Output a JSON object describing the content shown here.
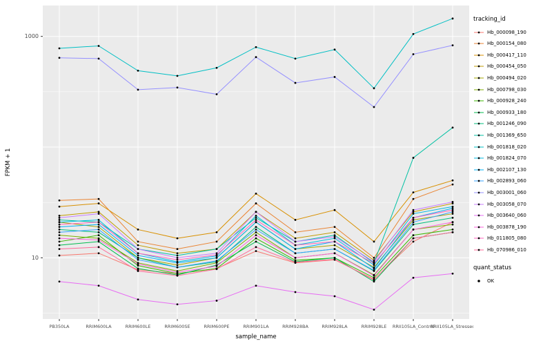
{
  "chart_data": {
    "type": "line",
    "title": "",
    "xlabel": "sample_name",
    "ylabel": "FPKM + 1",
    "y_scale": "log10",
    "y_tick_labels": [
      10,
      1000
    ],
    "y_grid_major": [
      10,
      100,
      1000
    ],
    "y_grid_minor": [
      3.162,
      31.62,
      316.2
    ],
    "ylim": [
      2.8,
      1900
    ],
    "panel_bg": "#EBEBEB",
    "grid_color": "#FFFFFF",
    "point_color": "#000000",
    "categories": [
      "PB350LA",
      "RRIM600LA",
      "RRIM600LE",
      "RRIM600SE",
      "RRIM600PE",
      "RRIM901LA",
      "RRIM928BA",
      "RRIM928LA",
      "RRIM928LE",
      "RRII105LA_Control",
      "RRII105LA_Stressed"
    ],
    "legend": {
      "title": "tracking_id",
      "position": "right"
    },
    "quant_status": {
      "title": "quant_status",
      "items": [
        {
          "label": "OK"
        }
      ]
    },
    "series": [
      {
        "name": "Hb_000098_190",
        "color": "#F8766D",
        "values": [
          10.5,
          11,
          7.8,
          7.2,
          8,
          11.5,
          9,
          9.6,
          6.4,
          14,
          21
        ]
      },
      {
        "name": "Hb_000154_080",
        "color": "#EA8331",
        "values": [
          33,
          34,
          14,
          12,
          14,
          31,
          17,
          19,
          10,
          34,
          46
        ]
      },
      {
        "name": "Hb_000417_110",
        "color": "#D89000",
        "values": [
          29,
          31,
          18,
          15,
          17,
          38,
          22,
          27,
          14,
          39,
          50
        ]
      },
      {
        "name": "Hb_000454_050",
        "color": "#C09B00",
        "values": [
          24,
          26,
          13,
          11,
          12,
          26,
          15,
          17,
          9.5,
          26,
          31
        ]
      },
      {
        "name": "Hb_000494_020",
        "color": "#A3A500",
        "values": [
          21,
          19,
          10,
          8.6,
          10,
          21,
          12,
          13,
          8.2,
          22,
          25
        ]
      },
      {
        "name": "Hb_000798_030",
        "color": "#7CAE00",
        "values": [
          16,
          15,
          9,
          7.6,
          9,
          17,
          10,
          11,
          7,
          18,
          20
        ]
      },
      {
        "name": "Hb_000928_240",
        "color": "#39B600",
        "values": [
          14,
          16,
          8.5,
          7.2,
          8,
          15,
          9.5,
          10,
          6.6,
          16,
          18
        ]
      },
      {
        "name": "Hb_000933_180",
        "color": "#00BB4E",
        "values": [
          13,
          14,
          8,
          7,
          8.6,
          14,
          9.2,
          10,
          6.1,
          15,
          17
        ]
      },
      {
        "name": "Hb_001246_090",
        "color": "#00BF7D",
        "values": [
          18,
          17,
          10,
          8.2,
          9.2,
          19,
          11,
          12,
          7.6,
          20,
          23
        ]
      },
      {
        "name": "Hb_001369_650",
        "color": "#00C1A3",
        "values": [
          22,
          21,
          12,
          10.5,
          12,
          23,
          14,
          16,
          9,
          80,
          150
        ]
      },
      {
        "name": "Hb_001818_020",
        "color": "#00BFC4",
        "values": [
          780,
          820,
          490,
          440,
          520,
          800,
          630,
          760,
          340,
          1050,
          1450
        ]
      },
      {
        "name": "Hb_001824_070",
        "color": "#00BAE0",
        "values": [
          21,
          22,
          11,
          9.2,
          10.4,
          24,
          13,
          15,
          8.6,
          25,
          29
        ]
      },
      {
        "name": "Hb_002107_130",
        "color": "#00B0F6",
        "values": [
          19,
          20,
          10.5,
          9,
          10,
          21,
          12,
          14,
          8,
          23,
          28
        ]
      },
      {
        "name": "Hb_002893_060",
        "color": "#35A2FF",
        "values": [
          17,
          18,
          9.6,
          8.2,
          9.4,
          18,
          11,
          12,
          7.7,
          21,
          26
        ]
      },
      {
        "name": "Hb_003001_060",
        "color": "#9590FF",
        "values": [
          640,
          630,
          330,
          345,
          300,
          650,
          380,
          430,
          230,
          690,
          830
        ]
      },
      {
        "name": "Hb_003058_070",
        "color": "#C77CFF",
        "values": [
          23,
          25,
          12,
          10,
          11,
          26,
          14,
          15.5,
          9.2,
          27,
          32
        ]
      },
      {
        "name": "Hb_003640_060",
        "color": "#E76BF3",
        "values": [
          6.1,
          5.6,
          4.2,
          3.8,
          4.1,
          5.6,
          4.9,
          4.5,
          3.4,
          6.6,
          7.2
        ]
      },
      {
        "name": "Hb_003878_190",
        "color": "#FA62DB",
        "values": [
          15,
          14.5,
          8.8,
          7.4,
          8.4,
          16,
          10,
          11,
          6.9,
          18,
          21
        ]
      },
      {
        "name": "Hb_011805_080",
        "color": "#FF62BC",
        "values": [
          20,
          21,
          11,
          9.6,
          10.6,
          22,
          13,
          14,
          8.9,
          23,
          27
        ]
      },
      {
        "name": "Hb_070986_010",
        "color": "#FF6A98",
        "values": [
          12,
          12.5,
          7.6,
          6.9,
          7.9,
          12.5,
          9.1,
          9.7,
          6.3,
          15,
          17
        ]
      }
    ]
  }
}
